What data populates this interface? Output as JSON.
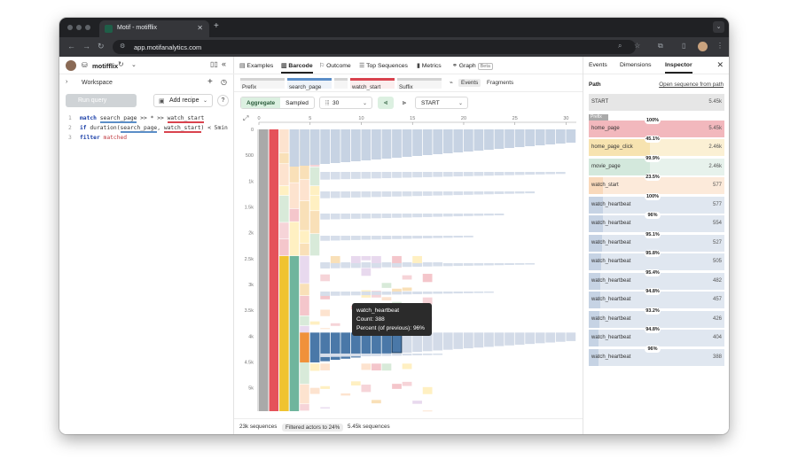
{
  "browser": {
    "tab_title": "Motif - motifflix",
    "url": "app.motifanalytics.com"
  },
  "left": {
    "workspace_name": "motifflix",
    "tree_label": "Workspace",
    "run_query": "Run query",
    "add_recipe": "Add recipe",
    "code": {
      "l1_num": "1",
      "l1_kw": "match",
      "l1_e1": "search_page",
      "l1_mid": " >> * >> ",
      "l1_e2": "watch_start",
      "l2_num": "2",
      "l2_kw": "if",
      "l2_fn": " duration(",
      "l2_a": "search_page",
      "l2_c": ", ",
      "l2_b": "watch_start",
      "l2_end": ") < 5min",
      "l3_num": "3",
      "l3_kw": "filter",
      "l3_v": " matched"
    }
  },
  "mid": {
    "nav": [
      {
        "label": "Examples",
        "icon": "▤"
      },
      {
        "label": "Barcode",
        "icon": "▥"
      },
      {
        "label": "Outcome",
        "icon": "⚐"
      },
      {
        "label": "Top Sequences",
        "icon": "☰"
      },
      {
        "label": "Metrics",
        "icon": "▮"
      },
      {
        "label": "Graph",
        "icon": "⚭"
      }
    ],
    "beta": "Beta",
    "filters": {
      "prefix": "Prefix",
      "search_page": "search_page",
      "watch_start": "watch_start",
      "suffix": "Suffix",
      "events": "Events",
      "fragments": "Fragments"
    },
    "controls": {
      "aggregate": "Aggregate",
      "sampled": "Sampled",
      "depth": "30",
      "align": "START"
    },
    "tooltip": {
      "title": "watch_heartbeat",
      "count": "Count: 388",
      "percent": "Percent (of previous): 96%"
    },
    "status": {
      "sequences": "23k sequences",
      "filtered": "Filtered actors to 24%",
      "filtered_sequences": "5.45k sequences"
    }
  },
  "chart_data": {
    "type": "bar",
    "x_ticks": [
      "0",
      "5",
      "10",
      "15",
      "20",
      "25",
      "30"
    ],
    "y_ticks": [
      "0",
      "500",
      "1k",
      "1.5k",
      "2k",
      "2.5k",
      "3k",
      "3.5k",
      "4k",
      "4.5k",
      "5k"
    ],
    "xlim": [
      0,
      31
    ],
    "ylim": [
      0,
      5450
    ],
    "highlight": {
      "name": "watch_heartbeat",
      "count": 388,
      "percent_of_previous": 96
    }
  },
  "right": {
    "tabs": [
      "Events",
      "Dimensions",
      "Inspector"
    ],
    "path_label": "Path",
    "open_sequence": "Open sequence from path",
    "prefix_tag": "Prefix",
    "rows": [
      {
        "label": "START",
        "count": "5.45k",
        "frac": 1.0,
        "color": "#e6e6e6"
      },
      {
        "label": "home_page",
        "count": "5.45k",
        "frac": 1.0,
        "color": "#f2b8bd"
      },
      {
        "label": "home_page_click",
        "count": "2.46k",
        "frac": 0.451,
        "color": "#f7e3b0"
      },
      {
        "label": "movie_page",
        "count": "2.46k",
        "frac": 0.451,
        "color": "#d3e8dc"
      },
      {
        "label": "watch_start",
        "count": "577",
        "frac": 0.106,
        "color": "#f9d9bb"
      },
      {
        "label": "watch_heartbeat",
        "count": "577",
        "frac": 0.106,
        "color": "#c6d3e4"
      },
      {
        "label": "watch_heartbeat",
        "count": "554",
        "frac": 0.102,
        "color": "#c6d3e4"
      },
      {
        "label": "watch_heartbeat",
        "count": "527",
        "frac": 0.097,
        "color": "#c6d3e4"
      },
      {
        "label": "watch_heartbeat",
        "count": "505",
        "frac": 0.093,
        "color": "#c6d3e4"
      },
      {
        "label": "watch_heartbeat",
        "count": "482",
        "frac": 0.088,
        "color": "#c6d3e4"
      },
      {
        "label": "watch_heartbeat",
        "count": "457",
        "frac": 0.084,
        "color": "#c6d3e4"
      },
      {
        "label": "watch_heartbeat",
        "count": "426",
        "frac": 0.078,
        "color": "#c6d3e4"
      },
      {
        "label": "watch_heartbeat",
        "count": "404",
        "frac": 0.074,
        "color": "#c6d3e4"
      },
      {
        "label": "watch_heartbeat",
        "count": "388",
        "frac": 0.071,
        "color": "#c6d3e4"
      }
    ],
    "pcts": [
      "100%",
      "45.1%",
      "99.9%",
      "23.5%",
      "100%",
      "96%",
      "95.1%",
      "95.8%",
      "95.4%",
      "94.8%",
      "93.2%",
      "94.8%",
      "96%"
    ]
  }
}
